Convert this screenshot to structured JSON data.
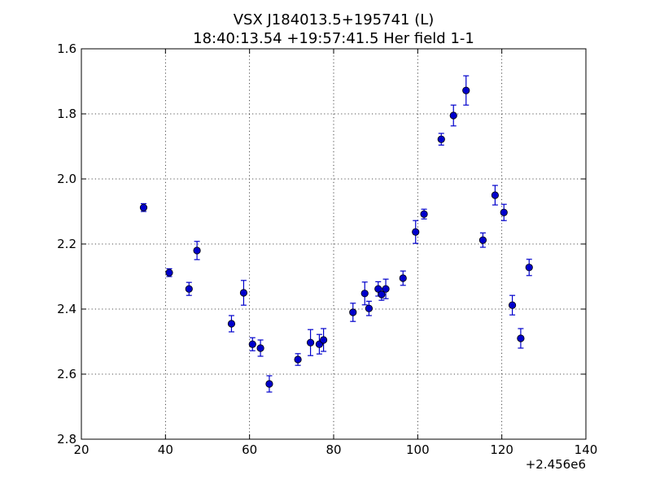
{
  "chart_data": {
    "type": "scatter",
    "title": "VSX J184013.5+195741 (L)",
    "subtitle": "18:40:13.54 +19:57:41.5 Her field 1-1",
    "xlabel": "",
    "ylabel": "",
    "x_offset_label": "+2.456e6",
    "xlim": [
      20,
      140
    ],
    "ylim": [
      2.8,
      1.6
    ],
    "y_inverted": true,
    "grid": true,
    "x_ticks": [
      20,
      40,
      60,
      80,
      100,
      120,
      140
    ],
    "y_ticks": [
      1.6,
      1.8,
      2.0,
      2.2,
      2.4,
      2.6,
      2.8
    ],
    "x_tick_labels": [
      "20",
      "40",
      "60",
      "80",
      "100",
      "120",
      "140"
    ],
    "y_tick_labels": [
      "1.6",
      "1.8",
      "2.0",
      "2.2",
      "2.4",
      "2.6",
      "2.8"
    ],
    "color": "#0000cc",
    "points": [
      {
        "x": 34.8,
        "y": 2.088,
        "err": 0.012
      },
      {
        "x": 40.9,
        "y": 2.288,
        "err": 0.012
      },
      {
        "x": 45.6,
        "y": 2.338,
        "err": 0.02
      },
      {
        "x": 47.5,
        "y": 2.22,
        "err": 0.028
      },
      {
        "x": 55.7,
        "y": 2.445,
        "err": 0.025
      },
      {
        "x": 58.6,
        "y": 2.35,
        "err": 0.038
      },
      {
        "x": 60.7,
        "y": 2.508,
        "err": 0.02
      },
      {
        "x": 62.6,
        "y": 2.52,
        "err": 0.025
      },
      {
        "x": 64.7,
        "y": 2.63,
        "err": 0.025
      },
      {
        "x": 71.5,
        "y": 2.555,
        "err": 0.018
      },
      {
        "x": 74.5,
        "y": 2.503,
        "err": 0.04
      },
      {
        "x": 76.6,
        "y": 2.508,
        "err": 0.03
      },
      {
        "x": 77.6,
        "y": 2.495,
        "err": 0.035
      },
      {
        "x": 84.6,
        "y": 2.41,
        "err": 0.028
      },
      {
        "x": 87.4,
        "y": 2.352,
        "err": 0.035
      },
      {
        "x": 88.4,
        "y": 2.398,
        "err": 0.022
      },
      {
        "x": 90.6,
        "y": 2.338,
        "err": 0.022
      },
      {
        "x": 91.4,
        "y": 2.355,
        "err": 0.018
      },
      {
        "x": 92.4,
        "y": 2.338,
        "err": 0.03
      },
      {
        "x": 96.5,
        "y": 2.305,
        "err": 0.022
      },
      {
        "x": 99.5,
        "y": 2.163,
        "err": 0.035
      },
      {
        "x": 101.5,
        "y": 2.108,
        "err": 0.015
      },
      {
        "x": 105.6,
        "y": 1.878,
        "err": 0.018
      },
      {
        "x": 108.5,
        "y": 1.805,
        "err": 0.032
      },
      {
        "x": 111.5,
        "y": 1.728,
        "err": 0.045
      },
      {
        "x": 115.5,
        "y": 2.188,
        "err": 0.022
      },
      {
        "x": 118.4,
        "y": 2.05,
        "err": 0.03
      },
      {
        "x": 120.5,
        "y": 2.103,
        "err": 0.025
      },
      {
        "x": 122.5,
        "y": 2.388,
        "err": 0.03
      },
      {
        "x": 124.5,
        "y": 2.49,
        "err": 0.03
      },
      {
        "x": 126.5,
        "y": 2.272,
        "err": 0.025
      }
    ]
  }
}
